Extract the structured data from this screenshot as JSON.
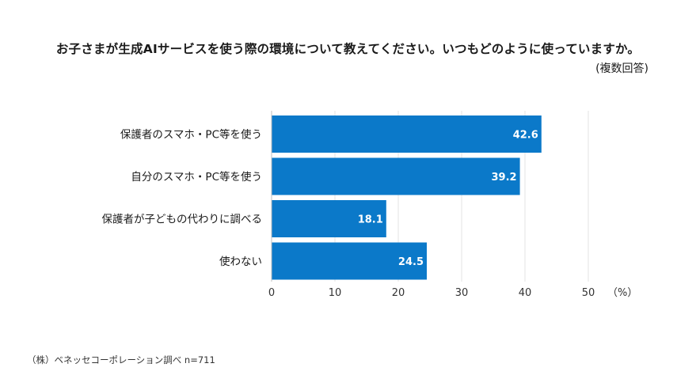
{
  "chart_data": {
    "type": "bar",
    "orientation": "horizontal",
    "title": "お子さまが生成AIサービスを使う際の環境について教えてください。いつもどのように使っていますか。",
    "subtitle": "(複数回答)",
    "categories": [
      "保護者のスマホ・PC等を使う",
      "自分のスマホ・PC等を使う",
      "保護者が子どもの代わりに調べる",
      "使わない"
    ],
    "values": [
      42.6,
      39.2,
      18.1,
      24.5
    ],
    "value_labels": [
      "42.6",
      "39.2",
      "18.1",
      "24.5"
    ],
    "xlim": [
      0,
      50
    ],
    "xticks": [
      0,
      10,
      20,
      30,
      40,
      50
    ],
    "xtick_labels": [
      "0",
      "10",
      "20",
      "30",
      "40",
      "50"
    ],
    "unit_label": "（%）",
    "bar_color": "#0b79c9",
    "grid": true,
    "source": "（株）ベネッセコーポレーション調べ n=711"
  }
}
